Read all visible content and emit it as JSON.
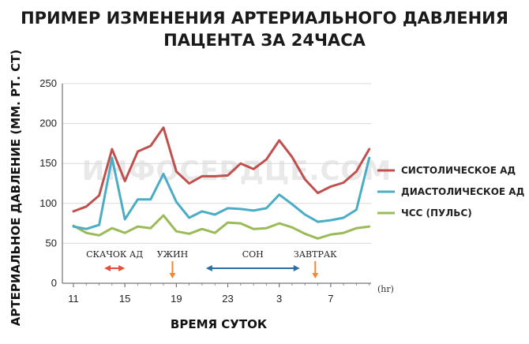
{
  "title_line1": "ПРИМЕР ИЗМЕНЕНИЯ АРТЕРИАЛЬНОГО ДАВЛЕНИЯ",
  "title_line2": "ПАЦЕНТА ЗА 24ЧАСА",
  "watermark": "ИНФОСЕРДЦЕ.COM",
  "chart_data": {
    "type": "line",
    "xlabel": "ВРЕМЯ СУТОК",
    "ylabel": "АРТЕРИАЛЬНОЕ ДАВЛЕНИЕ (ММ. РТ. СТ)",
    "x_unit": "(hr)",
    "ylim": [
      0,
      250
    ],
    "yticks": [
      0,
      50,
      100,
      150,
      200,
      250
    ],
    "x_tick_labels": [
      "11",
      "15",
      "19",
      "23",
      "3",
      "7"
    ],
    "x_tick_hours": [
      11,
      15,
      19,
      23,
      27,
      31
    ],
    "xlim": [
      11,
      35
    ],
    "grid": "horizontal",
    "legend_position": "right",
    "x": [
      11,
      12,
      13,
      14,
      15,
      16,
      17,
      18,
      19,
      20,
      21,
      22,
      23,
      24,
      25,
      26,
      27,
      28,
      29,
      30,
      31,
      32,
      33,
      34
    ],
    "series": [
      {
        "name": "СИСТОЛИЧЕСКОЕ АД",
        "color": "#c0504d",
        "values": [
          90,
          96,
          110,
          168,
          128,
          165,
          172,
          195,
          140,
          125,
          134,
          134,
          135,
          150,
          143,
          155,
          179,
          158,
          130,
          113,
          121,
          126,
          140,
          168
        ]
      },
      {
        "name": "ДИАСТОЛИЧЕСКОЕ АД",
        "color": "#4bacc6",
        "values": [
          71,
          68,
          73,
          157,
          80,
          105,
          105,
          137,
          102,
          82,
          90,
          86,
          94,
          93,
          91,
          94,
          111,
          99,
          86,
          77,
          79,
          82,
          92,
          157
        ]
      },
      {
        "name": "ЧСС (ПУЛЬС)",
        "color": "#9bbb59",
        "values": [
          72,
          63,
          60,
          69,
          63,
          71,
          69,
          85,
          65,
          62,
          68,
          63,
          76,
          75,
          68,
          69,
          75,
          70,
          62,
          56,
          61,
          63,
          69,
          71
        ]
      }
    ],
    "annotations": [
      {
        "label": "СКАЧОК АД",
        "type": "range",
        "from": 13.4,
        "to": 15.0,
        "color": "#e0503a"
      },
      {
        "label": "УЖИН",
        "type": "point",
        "at": 18.7,
        "color": "#f0883a"
      },
      {
        "label": "СОН",
        "type": "range",
        "from": 21.3,
        "to": 28.6,
        "color": "#2e6da4"
      },
      {
        "label": "ЗАВТРАК",
        "type": "point",
        "at": 29.8,
        "color": "#f0883a"
      }
    ]
  }
}
